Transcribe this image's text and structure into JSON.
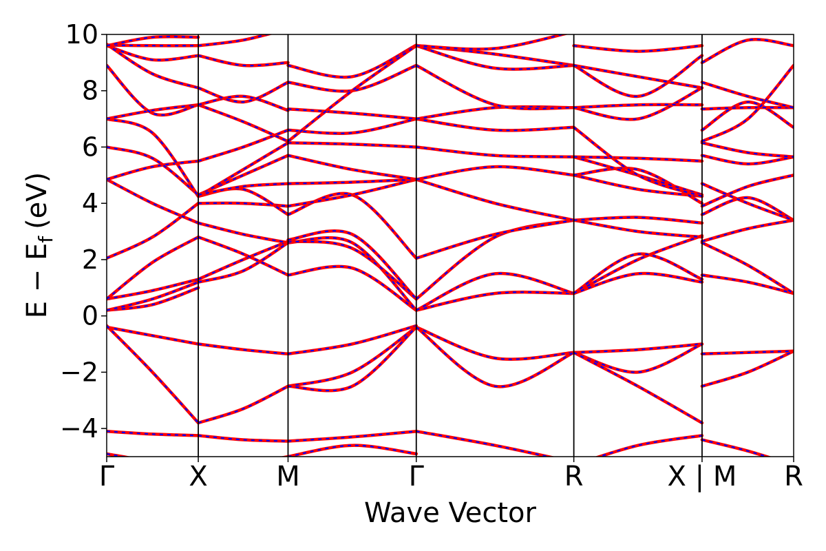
{
  "chart_data": {
    "type": "line",
    "title": "",
    "xlabel": "Wave Vector",
    "ylabel": "E − E_f (eV)",
    "ylabel_parts": {
      "main": "E − E",
      "sub": "f",
      "unit": "(eV)"
    },
    "ylim": [
      -5,
      10
    ],
    "yticks": [
      -4,
      -2,
      0,
      2,
      4,
      6,
      8,
      10
    ],
    "ytick_labels": [
      "−4",
      "−2",
      "0",
      "2",
      "4",
      "6",
      "8",
      "10"
    ],
    "xlim": [
      0,
      7.5
    ],
    "high_symmetry_points": [
      {
        "x": 0.0,
        "label": "Γ"
      },
      {
        "x": 1.0,
        "label": "X"
      },
      {
        "x": 1.98,
        "label": "M"
      },
      {
        "x": 3.38,
        "label": "Γ"
      },
      {
        "x": 5.1,
        "label": "R"
      },
      {
        "x": 6.5,
        "label": "X | M"
      },
      {
        "x": 7.5,
        "label": "R"
      }
    ],
    "path_break_x": 6.5,
    "grid": false,
    "legend": "none",
    "series_style": {
      "curve_color": "#ff0000",
      "overlay_dash_color": "#0000ff"
    },
    "segments": [
      {
        "x": [
          0,
          1
        ],
        "bands": [
          [
            -4.1,
            -4.2,
            -4.25
          ],
          [
            -4.9,
            -5.2,
            -5.6
          ],
          [
            -0.4,
            -0.7,
            -1.0
          ],
          [
            -0.35,
            -2.0,
            -3.8
          ],
          [
            0.2,
            0.4,
            1.0
          ],
          [
            0.2,
            0.6,
            1.2
          ],
          [
            0.6,
            0.9,
            1.3
          ],
          [
            0.6,
            1.9,
            2.8
          ],
          [
            2.05,
            2.8,
            4.0
          ],
          [
            4.85,
            4.0,
            3.3
          ],
          [
            4.85,
            5.3,
            5.5
          ],
          [
            6.0,
            5.6,
            4.3
          ],
          [
            7.0,
            6.5,
            4.25
          ],
          [
            7.0,
            7.3,
            7.5
          ],
          [
            8.9,
            7.2,
            7.5
          ],
          [
            9.6,
            9.1,
            9.25
          ],
          [
            9.65,
            8.6,
            8.1
          ],
          [
            9.62,
            9.6,
            9.6
          ],
          [
            9.6,
            9.9,
            9.9
          ]
        ]
      },
      {
        "x": [
          1,
          1.98
        ],
        "bands": [
          [
            -4.25,
            -4.4,
            -4.45
          ],
          [
            -3.8,
            -3.3,
            -2.5
          ],
          [
            -1.0,
            -1.2,
            -1.35
          ],
          [
            -5.6,
            -5.3,
            -5.0
          ],
          [
            1.2,
            1.6,
            2.6
          ],
          [
            1.3,
            2.0,
            2.65
          ],
          [
            2.8,
            2.2,
            1.45
          ],
          [
            3.3,
            2.9,
            2.6
          ],
          [
            4.0,
            4.0,
            3.9
          ],
          [
            4.25,
            4.5,
            3.6
          ],
          [
            4.3,
            5.0,
            5.7
          ],
          [
            4.25,
            5.2,
            6.15
          ],
          [
            5.5,
            6.0,
            6.6
          ],
          [
            4.3,
            4.6,
            4.7
          ],
          [
            7.5,
            6.9,
            6.2
          ],
          [
            7.5,
            7.8,
            7.3
          ],
          [
            8.1,
            7.6,
            8.3
          ],
          [
            9.25,
            8.9,
            9.0
          ],
          [
            9.6,
            9.8,
            10.2
          ]
        ]
      },
      {
        "x": [
          1.98,
          3.38
        ],
        "bands": [
          [
            -4.45,
            -4.3,
            -4.1
          ],
          [
            -5.0,
            -4.6,
            -4.9
          ],
          [
            -1.35,
            -1.0,
            -0.35
          ],
          [
            -2.5,
            -2.0,
            -0.4
          ],
          [
            -2.5,
            -2.5,
            -0.4
          ],
          [
            1.45,
            1.7,
            0.2
          ],
          [
            2.6,
            2.6,
            0.2
          ],
          [
            2.65,
            2.4,
            0.6
          ],
          [
            2.7,
            2.9,
            0.6
          ],
          [
            3.6,
            4.3,
            2.05
          ],
          [
            3.9,
            4.3,
            4.85
          ],
          [
            4.7,
            4.75,
            4.85
          ],
          [
            5.7,
            5.2,
            4.85
          ],
          [
            6.15,
            6.1,
            6.0
          ],
          [
            6.6,
            6.5,
            7.0
          ],
          [
            7.35,
            7.2,
            7.0
          ],
          [
            8.3,
            8.0,
            8.9
          ],
          [
            8.9,
            8.5,
            9.62
          ],
          [
            6.2,
            8.0,
            9.6
          ]
        ]
      },
      {
        "x": [
          3.38,
          5.1
        ],
        "bands": [
          [
            -4.1,
            -4.6,
            -5.2
          ],
          [
            -0.4,
            -1.5,
            -1.3
          ],
          [
            -0.4,
            -2.5,
            -1.3
          ],
          [
            0.2,
            0.8,
            0.8
          ],
          [
            0.2,
            1.5,
            0.8
          ],
          [
            0.6,
            2.8,
            3.4
          ],
          [
            2.05,
            2.9,
            3.4
          ],
          [
            4.85,
            4.0,
            3.4
          ],
          [
            4.85,
            5.3,
            5.0
          ],
          [
            6.0,
            5.7,
            5.65
          ],
          [
            7.0,
            6.6,
            6.7
          ],
          [
            7.0,
            7.4,
            7.4
          ],
          [
            8.9,
            7.5,
            7.4
          ],
          [
            9.6,
            9.3,
            8.9
          ],
          [
            9.6,
            8.8,
            8.9
          ],
          [
            9.6,
            9.5,
            10.1
          ]
        ]
      },
      {
        "x": [
          5.1,
          6.5
        ],
        "bands": [
          [
            -1.3,
            -1.2,
            -1.0
          ],
          [
            -1.3,
            -2.0,
            -1.0
          ],
          [
            -1.3,
            -2.5,
            -3.8
          ],
          [
            0.8,
            2.0,
            2.85
          ],
          [
            0.8,
            1.5,
            1.2
          ],
          [
            0.8,
            2.2,
            1.3
          ],
          [
            3.4,
            3.0,
            2.8
          ],
          [
            3.4,
            3.5,
            3.3
          ],
          [
            5.0,
            4.5,
            4.25
          ],
          [
            5.0,
            5.2,
            4.0
          ],
          [
            5.65,
            5.0,
            4.3
          ],
          [
            5.65,
            5.6,
            5.5
          ],
          [
            6.7,
            5.0,
            4.25
          ],
          [
            7.4,
            7.0,
            8.1
          ],
          [
            7.4,
            7.5,
            7.5
          ],
          [
            8.9,
            7.8,
            9.25
          ],
          [
            8.9,
            8.5,
            8.1
          ],
          [
            -5.3,
            -4.6,
            -4.25
          ],
          [
            9.6,
            9.4,
            9.6
          ]
        ]
      },
      {
        "x": [
          6.5,
          7.5
        ],
        "bands": [
          [
            -1.35,
            -1.3,
            -1.25
          ],
          [
            -2.5,
            -2.0,
            -1.25
          ],
          [
            1.45,
            1.2,
            0.8
          ],
          [
            2.6,
            1.8,
            0.8
          ],
          [
            2.65,
            3.1,
            3.4
          ],
          [
            3.6,
            4.2,
            3.4
          ],
          [
            3.9,
            4.6,
            5.0
          ],
          [
            4.7,
            4.0,
            3.4
          ],
          [
            5.7,
            5.4,
            5.65
          ],
          [
            6.15,
            5.8,
            5.65
          ],
          [
            6.6,
            7.6,
            6.7
          ],
          [
            7.35,
            7.4,
            7.4
          ],
          [
            8.3,
            7.8,
            7.4
          ],
          [
            9.0,
            9.8,
            9.6
          ],
          [
            6.2,
            7.0,
            8.9
          ],
          [
            -4.4,
            -4.8,
            -5.3
          ]
        ]
      }
    ]
  }
}
